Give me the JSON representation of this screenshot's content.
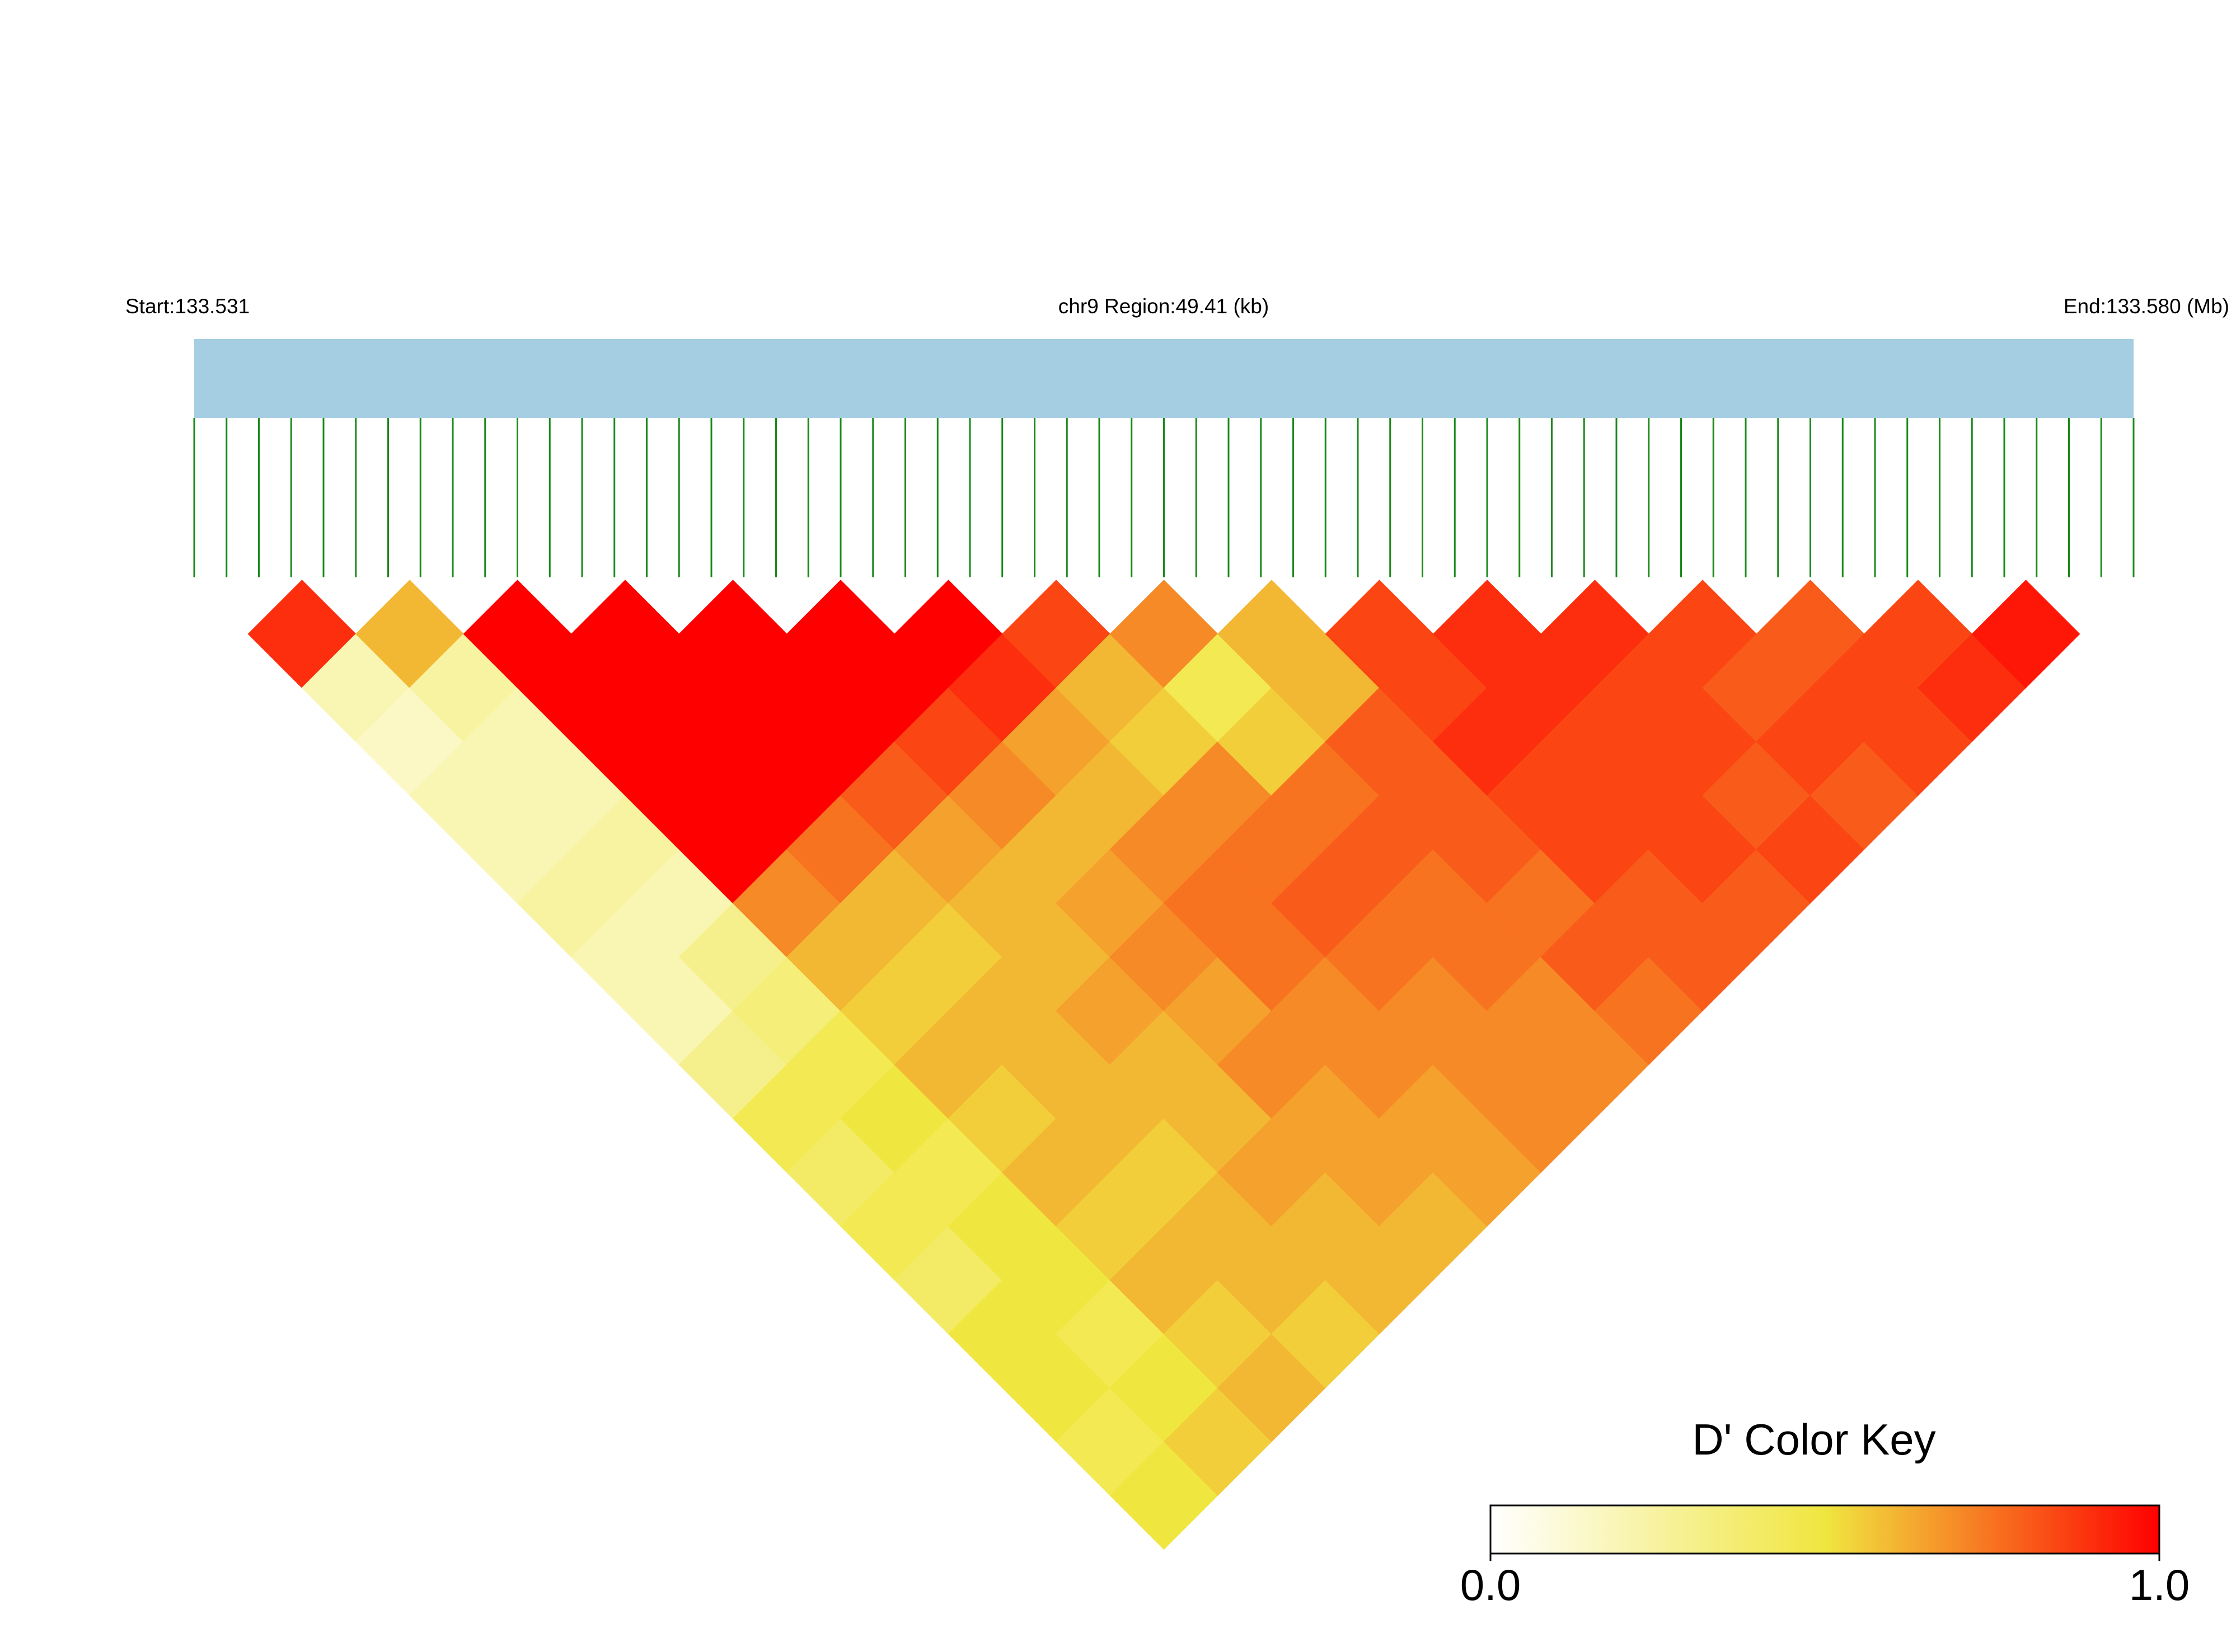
{
  "chart_data": {
    "type": "ld-heatmap",
    "start_label": "Start:133.531",
    "title": "chr9 Region:49.41 (kb)",
    "end_label": "End:133.580 (Mb)",
    "values": [
      [
        0.9,
        0.2,
        0.15,
        0.2,
        0.2,
        0.25,
        0.2,
        0.2,
        0.3,
        0.45,
        0.4,
        0.45,
        0.4,
        0.5,
        0.5,
        0.45,
        0.5
      ],
      [
        0.6,
        0.25,
        0.2,
        0.2,
        0.25,
        0.2,
        0.3,
        0.35,
        0.45,
        0.5,
        0.45,
        0.5,
        0.5,
        0.45,
        0.5,
        0.55
      ],
      [
        1,
        1,
        1,
        1,
        1,
        0.7,
        0.6,
        0.55,
        0.6,
        0.55,
        0.6,
        0.55,
        0.6,
        0.55,
        0.6
      ],
      [
        1,
        1,
        1,
        1,
        0.75,
        0.6,
        0.55,
        0.6,
        0.6,
        0.6,
        0.55,
        0.6,
        0.6,
        0.55
      ],
      [
        1,
        1,
        1,
        0.8,
        0.65,
        0.6,
        0.6,
        0.65,
        0.6,
        0.6,
        0.65,
        0.6,
        0.6
      ],
      [
        1,
        1,
        0.85,
        0.7,
        0.6,
        0.65,
        0.7,
        0.65,
        0.7,
        0.65,
        0.65,
        0.6
      ],
      [
        1,
        0.9,
        0.65,
        0.6,
        0.7,
        0.75,
        0.75,
        0.7,
        0.7,
        0.65,
        0.65
      ],
      [
        0.85,
        0.6,
        0.55,
        0.7,
        0.75,
        0.8,
        0.75,
        0.7,
        0.7,
        0.7
      ],
      [
        0.7,
        0.45,
        0.55,
        0.75,
        0.8,
        0.75,
        0.75,
        0.7,
        0.7
      ],
      [
        0.6,
        0.6,
        0.8,
        0.8,
        0.8,
        0.75,
        0.8,
        0.75
      ],
      [
        0.85,
        0.85,
        0.9,
        0.85,
        0.85,
        0.8,
        0.8
      ],
      [
        0.9,
        0.9,
        0.85,
        0.85,
        0.85,
        0.8
      ],
      [
        0.9,
        0.85,
        0.85,
        0.8,
        0.85
      ],
      [
        0.85,
        0.8,
        0.85,
        0.8
      ],
      [
        0.8,
        0.85,
        0.85
      ],
      [
        0.85,
        0.9
      ],
      [
        0.95
      ]
    ],
    "colorbar": {
      "title": "D' Color Key",
      "lim": [
        0,
        1
      ],
      "ticks": [
        {
          "value": 0,
          "label": "0.0"
        },
        {
          "value": 1,
          "label": "1.0"
        }
      ],
      "colors": [
        "#ffffff",
        "#f0e640",
        "#ff0000"
      ]
    }
  }
}
